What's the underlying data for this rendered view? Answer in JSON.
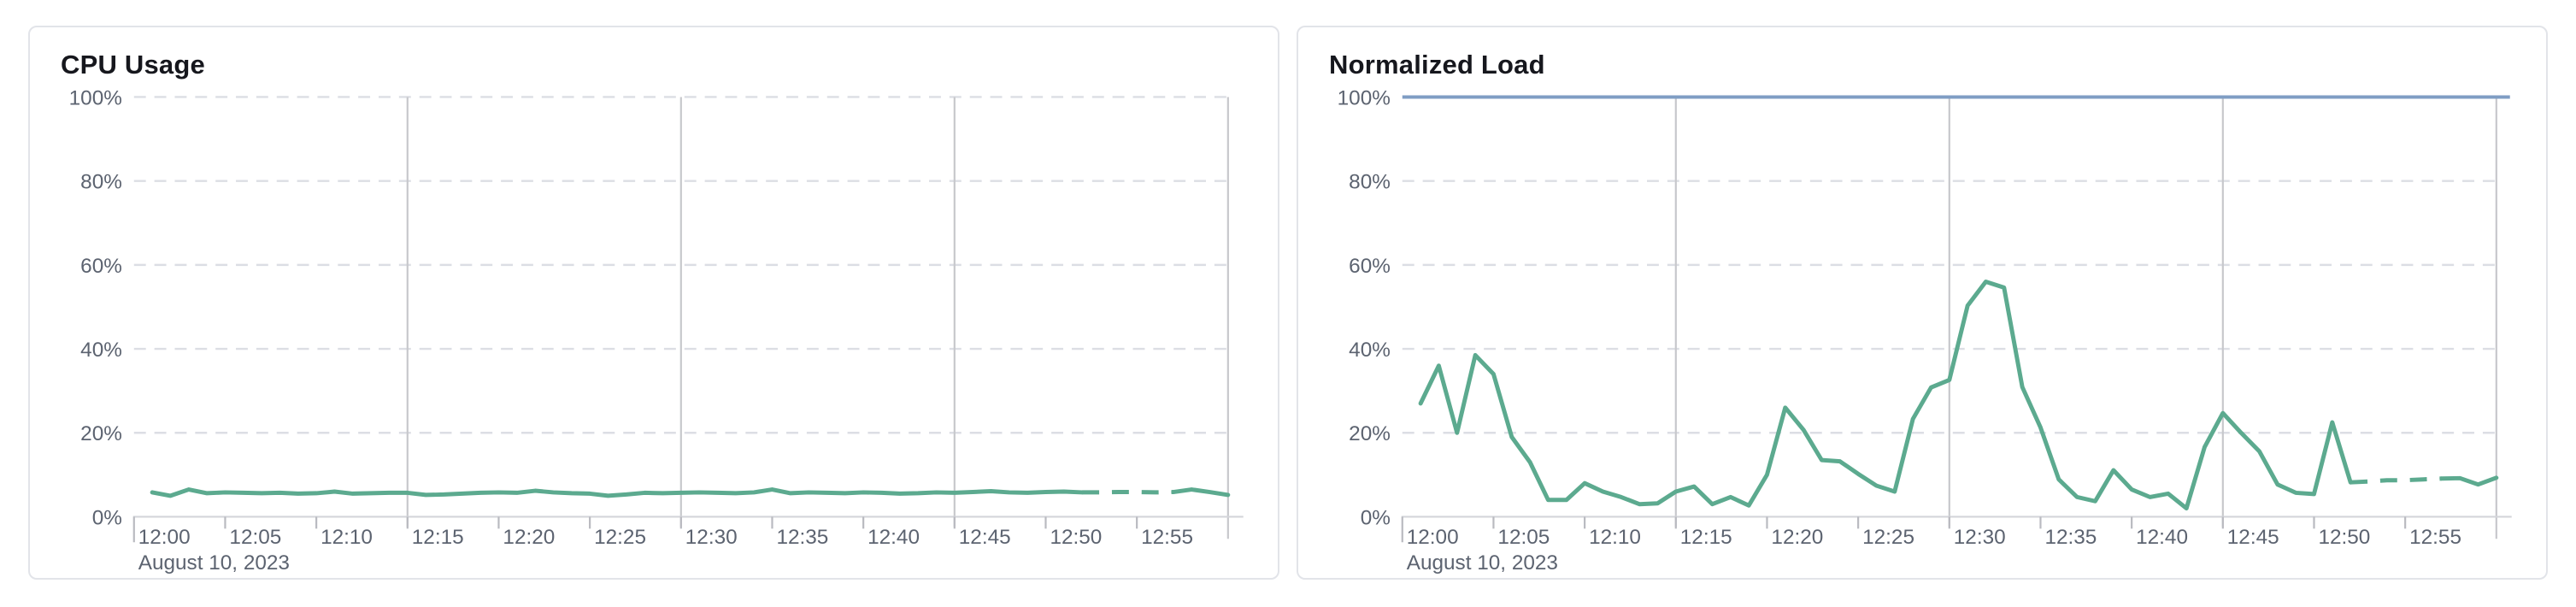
{
  "page": {
    "background": "#ffffff"
  },
  "panels": [
    {
      "title": "CPU Usage"
    },
    {
      "title": "Normalized Load"
    }
  ],
  "chart_data": [
    {
      "type": "line",
      "title": "CPU Usage",
      "x_tick_labels": [
        "12:00",
        "12:05",
        "12:10",
        "12:15",
        "12:20",
        "12:25",
        "12:30",
        "12:35",
        "12:40",
        "12:45",
        "12:50",
        "12:55"
      ],
      "x_date_label": "August 10, 2023",
      "x_range_minutes": [
        0,
        60
      ],
      "x_major_gridline_minutes": [
        15,
        30,
        45,
        60
      ],
      "y_tick_labels": [
        "0%",
        "20%",
        "40%",
        "60%",
        "80%",
        "100%"
      ],
      "y_ticks": [
        0,
        20,
        40,
        60,
        80,
        100
      ],
      "ylim": [
        0,
        100
      ],
      "grid": "dashed-horizontal, solid-vertical",
      "legend": "none",
      "reference_lines": [],
      "series": [
        {
          "name": "cpu-usage",
          "color": "#5caa8f",
          "dashed_from_minute": 52,
          "dashed_to_minute": 57,
          "x_minutes": [
            1,
            2,
            3,
            4,
            5,
            6,
            7,
            8,
            9,
            10,
            11,
            12,
            13,
            14,
            15,
            16,
            17,
            18,
            19,
            20,
            21,
            22,
            23,
            24,
            25,
            26,
            27,
            28,
            29,
            30,
            31,
            32,
            33,
            34,
            35,
            36,
            37,
            38,
            39,
            40,
            41,
            42,
            43,
            44,
            45,
            46,
            47,
            48,
            49,
            50,
            51,
            52,
            53,
            54,
            55,
            56,
            57,
            58,
            59,
            60
          ],
          "values": [
            5.8,
            5.0,
            6.5,
            5.6,
            5.8,
            5.7,
            5.6,
            5.7,
            5.5,
            5.6,
            6.0,
            5.5,
            5.6,
            5.7,
            5.7,
            5.2,
            5.3,
            5.5,
            5.7,
            5.8,
            5.7,
            6.2,
            5.8,
            5.6,
            5.5,
            5.0,
            5.3,
            5.7,
            5.6,
            5.7,
            5.8,
            5.7,
            5.6,
            5.8,
            6.5,
            5.6,
            5.8,
            5.7,
            5.6,
            5.8,
            5.7,
            5.5,
            5.6,
            5.8,
            5.7,
            5.9,
            6.1,
            5.8,
            5.7,
            5.9,
            6.0,
            5.8,
            5.8,
            5.9,
            5.9,
            5.8,
            5.9,
            6.5,
            5.9,
            5.2
          ]
        }
      ]
    },
    {
      "type": "line",
      "title": "Normalized Load",
      "x_tick_labels": [
        "12:00",
        "12:05",
        "12:10",
        "12:15",
        "12:20",
        "12:25",
        "12:30",
        "12:35",
        "12:40",
        "12:45",
        "12:50",
        "12:55"
      ],
      "x_date_label": "August 10, 2023",
      "x_range_minutes": [
        0,
        60
      ],
      "x_major_gridline_minutes": [
        15,
        30,
        45,
        60
      ],
      "y_tick_labels": [
        "0%",
        "20%",
        "40%",
        "60%",
        "80%",
        "100%"
      ],
      "y_ticks": [
        0,
        20,
        40,
        60,
        80,
        100
      ],
      "ylim": [
        0,
        100
      ],
      "grid": "dashed-horizontal, solid-vertical",
      "legend": "none",
      "reference_lines": [
        {
          "name": "limit-100-percent",
          "value": 100,
          "color": "#7f9dc4"
        }
      ],
      "series": [
        {
          "name": "normalized-load",
          "color": "#5caa8f",
          "dashed_from_minute": 52,
          "dashed_to_minute": 57,
          "x_minutes": [
            1,
            2,
            3,
            4,
            5,
            6,
            7,
            8,
            9,
            10,
            11,
            12,
            13,
            14,
            15,
            16,
            17,
            18,
            19,
            20,
            21,
            22,
            23,
            24,
            25,
            26,
            27,
            28,
            29,
            30,
            31,
            32,
            33,
            34,
            35,
            36,
            37,
            38,
            39,
            40,
            41,
            42,
            43,
            44,
            45,
            46,
            47,
            48,
            49,
            50,
            51,
            52,
            53,
            54,
            55,
            56,
            57,
            58,
            59,
            60
          ],
          "values": [
            27,
            36,
            20,
            38.5,
            34,
            19,
            13,
            4,
            4,
            8,
            6,
            4.7,
            3,
            3.2,
            6,
            7.2,
            3,
            4.7,
            2.7,
            10,
            26,
            20.7,
            13.5,
            13.2,
            10.2,
            7.4,
            6,
            23.3,
            30.8,
            32.6,
            50.3,
            56,
            54.6,
            30.9,
            21.3,
            8.9,
            4.7,
            3.7,
            11.1,
            6.5,
            4.7,
            5.5,
            2,
            16.6,
            24.7,
            20,
            15.6,
            7.7,
            5.7,
            5.4,
            22.5,
            8.2,
            8.4,
            8.7,
            8.7,
            8.9,
            9.1,
            9.2,
            7.7,
            9.3
          ]
        }
      ]
    }
  ],
  "style_colors": {
    "series_green": "#5caa8f",
    "reference_blue": "#7f9dc4",
    "axis_line": "#d4d5da",
    "h_gridline": "#dcdee4",
    "v_gridline": "#c7c8cc",
    "tick": "#b9bac0",
    "label_text": "#5c6370",
    "title_text": "#16171d",
    "panel_border": "#e2e4e9"
  }
}
